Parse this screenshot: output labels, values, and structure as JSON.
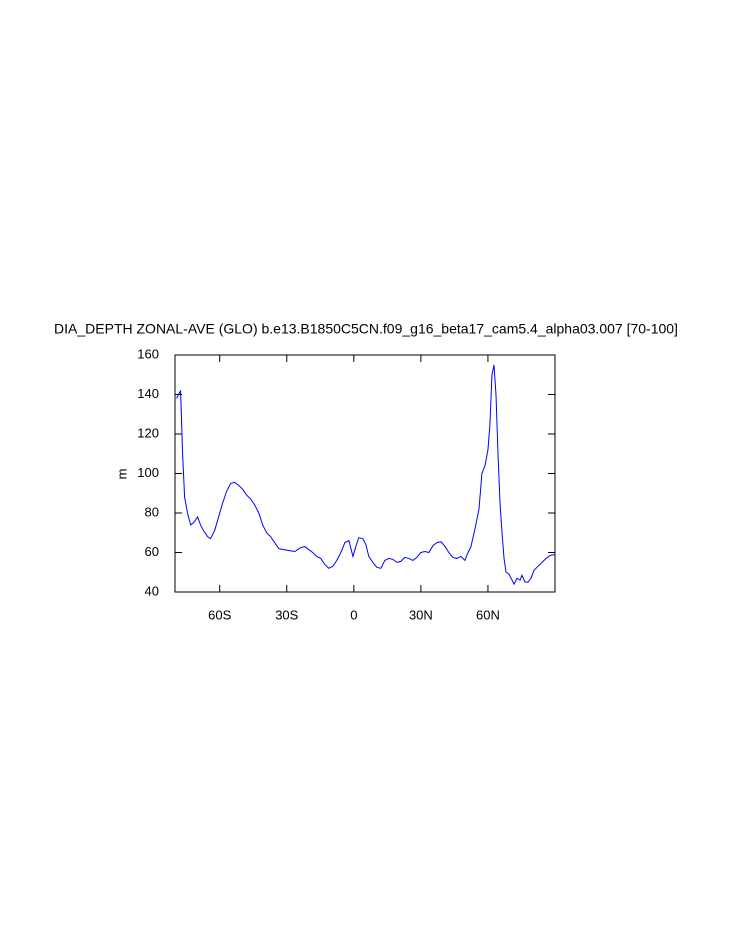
{
  "chart_data": {
    "type": "line",
    "title": "DIA_DEPTH ZONAL-AVE (GLO) b.e13.B1850C5CN.f09_g16_beta17_cam5.4_alpha03.007 [70-100]",
    "ylabel": "m",
    "xlim": [
      -80,
      90
    ],
    "ylim": [
      40,
      160
    ],
    "xticks": [
      {
        "value": -60,
        "label": "60S"
      },
      {
        "value": -30,
        "label": "30S"
      },
      0,
      {
        "value": 30,
        "label": "30N"
      },
      {
        "value": 60,
        "label": "60N"
      }
    ],
    "yticks": [
      40,
      60,
      80,
      100,
      120,
      140,
      160
    ],
    "series": [
      {
        "color": "#0000ff",
        "x": [
          -79.3,
          -78.4,
          -77.5,
          -76.6,
          -75.7,
          -74.4,
          -73.0,
          -71.7,
          -69.9,
          -68.6,
          -67.2,
          -65.4,
          -64.1,
          -62.3,
          -60.5,
          -58.7,
          -56.9,
          -55.1,
          -53.3,
          -51.5,
          -49.7,
          -47.9,
          -46.1,
          -44.3,
          -42.5,
          -40.8,
          -39.0,
          -37.2,
          -35.4,
          -33.6,
          -31.8,
          -29.1,
          -26.4,
          -23.7,
          -21.9,
          -20.2,
          -18.4,
          -16.6,
          -14.8,
          -13.0,
          -11.2,
          -9.4,
          -7.6,
          -5.8,
          -4.0,
          -2.2,
          -1.3,
          -0.4,
          0.9,
          2.2,
          4.0,
          5.4,
          6.7,
          8.5,
          10.3,
          12.1,
          13.9,
          15.7,
          17.5,
          19.3,
          21.0,
          22.8,
          24.6,
          26.4,
          28.2,
          30.0,
          31.8,
          33.6,
          35.4,
          37.2,
          39.0,
          40.8,
          42.5,
          44.3,
          46.1,
          47.9,
          49.7,
          51.1,
          52.4,
          54.2,
          56.0,
          57.3,
          58.7,
          60.0,
          60.9,
          61.8,
          62.7,
          63.6,
          64.5,
          65.4,
          66.3,
          67.2,
          68.1,
          69.4,
          70.8,
          71.7,
          73.0,
          74.4,
          75.2,
          76.6,
          77.9,
          79.3,
          80.6,
          82.4,
          84.2,
          86.0,
          87.8,
          90.0
        ],
        "values": [
          138,
          140,
          142,
          110,
          88,
          80,
          74,
          75,
          78,
          74,
          71,
          68,
          67,
          71,
          78,
          85,
          91,
          95,
          95.5,
          94,
          92,
          89,
          87,
          84,
          80,
          74,
          70,
          68,
          65,
          62,
          61.5,
          61,
          60.5,
          62.5,
          63,
          61.5,
          60,
          58,
          57,
          54,
          52,
          53,
          56,
          60,
          65,
          66,
          62,
          58,
          63,
          67.5,
          67,
          64,
          58,
          55,
          52.5,
          52,
          56,
          57,
          56.5,
          55,
          55.5,
          57.5,
          57,
          56,
          57.5,
          60,
          60.5,
          60,
          63.5,
          65,
          65.5,
          63,
          60,
          57.5,
          57,
          58,
          56,
          60,
          63,
          72,
          82,
          100,
          104,
          112,
          125,
          150,
          155,
          140,
          110,
          85,
          70,
          57,
          50,
          49,
          46,
          44,
          47,
          46,
          48.5,
          45,
          45,
          47,
          51,
          53,
          55,
          57,
          58.5,
          59
        ]
      }
    ]
  }
}
